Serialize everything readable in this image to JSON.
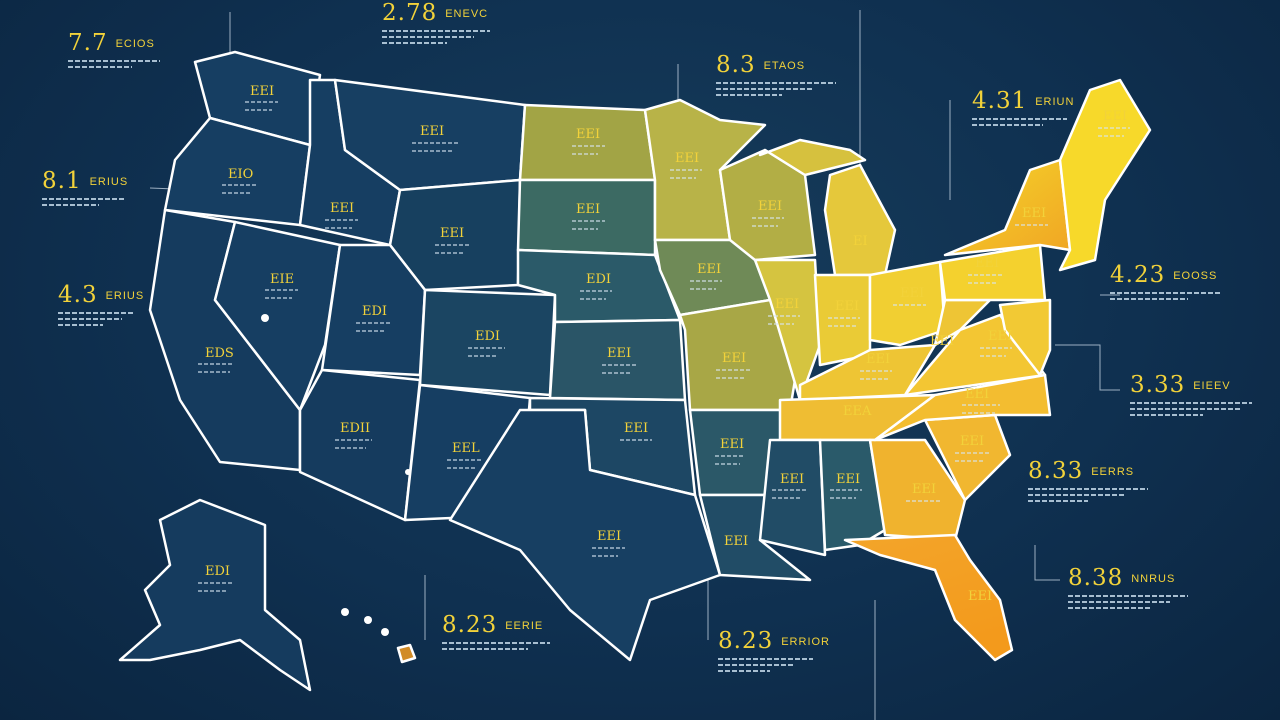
{
  "colors": {
    "background": "#0f3050",
    "state_border": "#ffffff",
    "label_yellow": "#f2d23a",
    "low_fill": "#143c60",
    "mid_fill": "#3b6c6e",
    "olive_fill": "#a9a843",
    "high_fill": "#f1c72c",
    "orange_fill": "#f0a024"
  },
  "legend_icon": "map-of-united-states",
  "callouts": [
    {
      "id": "c1",
      "value": "7.7",
      "word": "ECIOS"
    },
    {
      "id": "c2",
      "value": "2.78",
      "word": "ENEVC"
    },
    {
      "id": "c3",
      "value": "8.3",
      "word": "ETAOS"
    },
    {
      "id": "c4",
      "value": "4.31",
      "word": "ERIUN"
    },
    {
      "id": "c5",
      "value": "8.1",
      "word": "ERIUS"
    },
    {
      "id": "c6",
      "value": "4.3",
      "word": "ERIUS"
    },
    {
      "id": "c7",
      "value": "4.23",
      "word": "EOOSS"
    },
    {
      "id": "c8",
      "value": "3.33",
      "word": "EIEEV"
    },
    {
      "id": "c9",
      "value": "8.33",
      "word": "EERRS"
    },
    {
      "id": "c10",
      "value": "8.38",
      "word": "NNRUS"
    },
    {
      "id": "c11",
      "value": "8.23",
      "word": "EERIE"
    },
    {
      "id": "c12",
      "value": "8.23",
      "word": "ERRIOR"
    }
  ],
  "states": [
    {
      "code": "WA",
      "label": "EEI"
    },
    {
      "code": "OR",
      "label": "EIO"
    },
    {
      "code": "CA",
      "label": "EDS"
    },
    {
      "code": "NV",
      "label": "EIE"
    },
    {
      "code": "ID",
      "label": "EEI"
    },
    {
      "code": "MT",
      "label": "EEI"
    },
    {
      "code": "WY",
      "label": "EEI"
    },
    {
      "code": "UT",
      "label": "EDI"
    },
    {
      "code": "CO",
      "label": "EDI"
    },
    {
      "code": "AZ",
      "label": "EDII"
    },
    {
      "code": "NM",
      "label": "EEL"
    },
    {
      "code": "ND",
      "label": "EEI"
    },
    {
      "code": "SD",
      "label": "EEI"
    },
    {
      "code": "NE",
      "label": "EDI"
    },
    {
      "code": "KS",
      "label": "EEI"
    },
    {
      "code": "OK",
      "label": "EEI"
    },
    {
      "code": "TX",
      "label": "EEI"
    },
    {
      "code": "MN",
      "label": "EEI"
    },
    {
      "code": "IA",
      "label": "EEI"
    },
    {
      "code": "MO",
      "label": "EEI"
    },
    {
      "code": "AR",
      "label": "EEI"
    },
    {
      "code": "LA",
      "label": "EEI"
    },
    {
      "code": "WI",
      "label": "EEI"
    },
    {
      "code": "IL",
      "label": "EEI"
    },
    {
      "code": "MI",
      "label": "EI"
    },
    {
      "code": "IN",
      "label": "EEI"
    },
    {
      "code": "OH",
      "label": "EEI"
    },
    {
      "code": "KY",
      "label": "EEI"
    },
    {
      "code": "TN",
      "label": "EEA"
    },
    {
      "code": "MS",
      "label": "EEI"
    },
    {
      "code": "AL",
      "label": "EEI"
    },
    {
      "code": "GA",
      "label": "EEI"
    },
    {
      "code": "FL",
      "label": "EEI"
    },
    {
      "code": "SC",
      "label": "EEI"
    },
    {
      "code": "NC",
      "label": "EEI"
    },
    {
      "code": "VA",
      "label": "EEI"
    },
    {
      "code": "WV",
      "label": "EEI"
    },
    {
      "code": "PA",
      "label": "EEI"
    },
    {
      "code": "NY",
      "label": "EEI"
    },
    {
      "code": "ME",
      "label": "EEI"
    },
    {
      "code": "AK",
      "label": "EDI"
    }
  ]
}
